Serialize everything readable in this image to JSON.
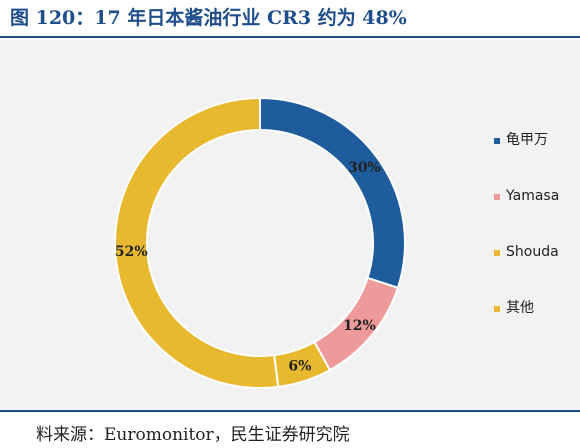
{
  "title": "图 120：17 年日本酱油行业 CR3 约为 48%",
  "source": "料来源：Euromonitor，民生证券研究院",
  "colors": {
    "title": "#1f4e8c",
    "slice_1": "#1f5c9e",
    "slice_2": "#ef9a9a",
    "slice_3": "#e8b92f",
    "slice_4": "#e8b92f"
  },
  "chart_data": {
    "type": "pie",
    "donut": true,
    "legend_position": "right",
    "slices": [
      {
        "label": "龟甲万",
        "value": 30,
        "display": "30%"
      },
      {
        "label": "Yamasa",
        "value": 12,
        "display": "12%"
      },
      {
        "label": "Shouda",
        "value": 6,
        "display": "6%"
      },
      {
        "label": "其他",
        "value": 52,
        "display": "52%"
      }
    ]
  }
}
